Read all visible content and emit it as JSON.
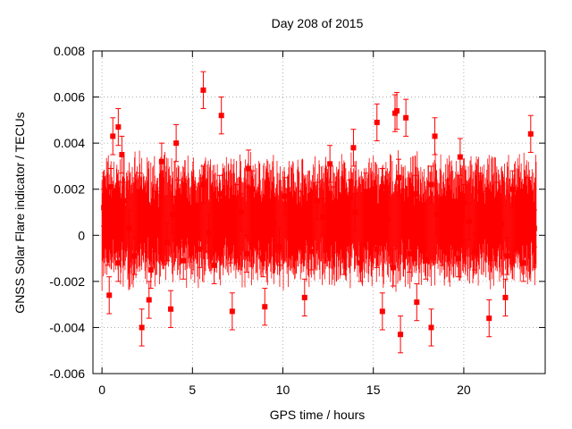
{
  "chart_data": {
    "type": "scatter",
    "title": "Day 208 of 2015",
    "xlabel": "GPS time / hours",
    "ylabel": "GNSS Solar Flare indicator / TECUs",
    "xlim": [
      -0.5,
      24.5
    ],
    "ylim": [
      -0.006,
      0.008
    ],
    "xticks": [
      0,
      5,
      10,
      15,
      20
    ],
    "yticks": [
      -0.006,
      -0.004,
      -0.002,
      0,
      0.002,
      0.004,
      0.006,
      0.008
    ],
    "xtick_labels": [
      "0",
      "5",
      "10",
      "15",
      "20"
    ],
    "ytick_labels": [
      "-0.006",
      "-0.004",
      "-0.002",
      "0",
      "0.002",
      "0.004",
      "0.006",
      "0.008"
    ],
    "grid": true,
    "marker_color": "#ff0000",
    "series": [
      {
        "x": [
          0.1,
          0.3,
          0.5,
          0.7,
          0.9,
          1.2,
          1.5,
          1.8,
          2.1,
          2.4,
          2.7,
          3.0,
          3.3,
          3.6,
          3.9,
          4.2,
          4.5,
          4.8,
          5.1,
          5.4,
          5.6,
          5.9,
          6.2,
          6.5,
          6.8,
          7.1,
          7.4,
          7.7,
          8.0,
          8.3,
          8.6,
          8.9,
          9.2,
          9.5,
          9.8,
          10.1,
          10.4,
          10.7,
          11.0,
          11.3,
          11.6,
          11.9,
          12.2,
          12.5,
          12.8,
          13.1,
          13.4,
          13.7,
          14.0,
          14.3,
          14.6,
          14.9,
          15.2,
          15.5,
          15.8,
          16.1,
          16.4,
          16.7,
          17.0,
          17.3,
          17.6,
          17.9,
          18.2,
          18.5,
          18.8,
          19.1,
          19.4,
          19.7,
          20.0,
          20.3,
          20.6,
          20.9,
          21.2,
          21.5,
          21.8,
          22.1,
          22.4,
          22.7,
          23.0,
          23.3,
          23.6,
          23.9,
          0.6,
          0.9,
          2.2,
          3.8,
          5.6,
          6.6,
          15.2,
          16.2,
          16.3,
          16.8,
          18.2,
          21.4,
          23.7,
          15.5,
          16.5,
          18.4,
          4.1,
          9.0,
          0.4,
          1.1,
          2.6,
          3.3,
          7.2,
          8.1,
          11.2,
          12.6,
          13.9,
          17.4,
          19.8,
          22.3
        ],
        "y": [
          0.0012,
          -0.0005,
          0.0021,
          0.0008,
          -0.0012,
          0.0015,
          0.0003,
          -0.0009,
          0.0019,
          0.0006,
          -0.0015,
          0.0011,
          0.0024,
          -0.0003,
          0.0009,
          0.0016,
          -0.0011,
          0.0005,
          0.0013,
          -0.0006,
          0.0022,
          0.0001,
          -0.0013,
          0.0018,
          0.0007,
          -0.0004,
          0.0014,
          0.001,
          -0.0008,
          0.002,
          0.0002,
          -0.001,
          0.0012,
          0.0006,
          -0.0005,
          0.0017,
          0.0009,
          -0.0002,
          0.0011,
          0.0004,
          -0.0007,
          0.0015,
          0.0008,
          -0.0003,
          0.0013,
          0.0005,
          -0.0009,
          0.0016,
          0.001,
          -0.0012,
          0.0019,
          0.0003,
          -0.0006,
          0.0021,
          0.0007,
          -0.0014,
          0.0025,
          0.0012,
          -0.0008,
          0.0018,
          0.0004,
          -0.0011,
          0.0022,
          0.0009,
          -0.0005,
          0.0016,
          0.0002,
          -0.001,
          0.0014,
          0.0006,
          -0.0007,
          0.0019,
          0.0011,
          -0.0003,
          0.0015,
          0.0005,
          -0.0009,
          0.002,
          0.0008,
          -0.0012,
          0.0017,
          0.0003,
          0.0043,
          0.0047,
          -0.004,
          -0.0032,
          0.0063,
          0.0052,
          0.0049,
          0.0053,
          0.0054,
          0.0051,
          -0.004,
          -0.0036,
          0.0044,
          -0.0033,
          -0.0043,
          0.0043,
          0.004,
          -0.0031,
          -0.0026,
          0.0035,
          -0.0028,
          0.0032,
          -0.0033,
          0.0029,
          -0.0027,
          0.0031,
          0.0038,
          -0.0029,
          0.0034,
          -0.0027
        ]
      }
    ]
  }
}
